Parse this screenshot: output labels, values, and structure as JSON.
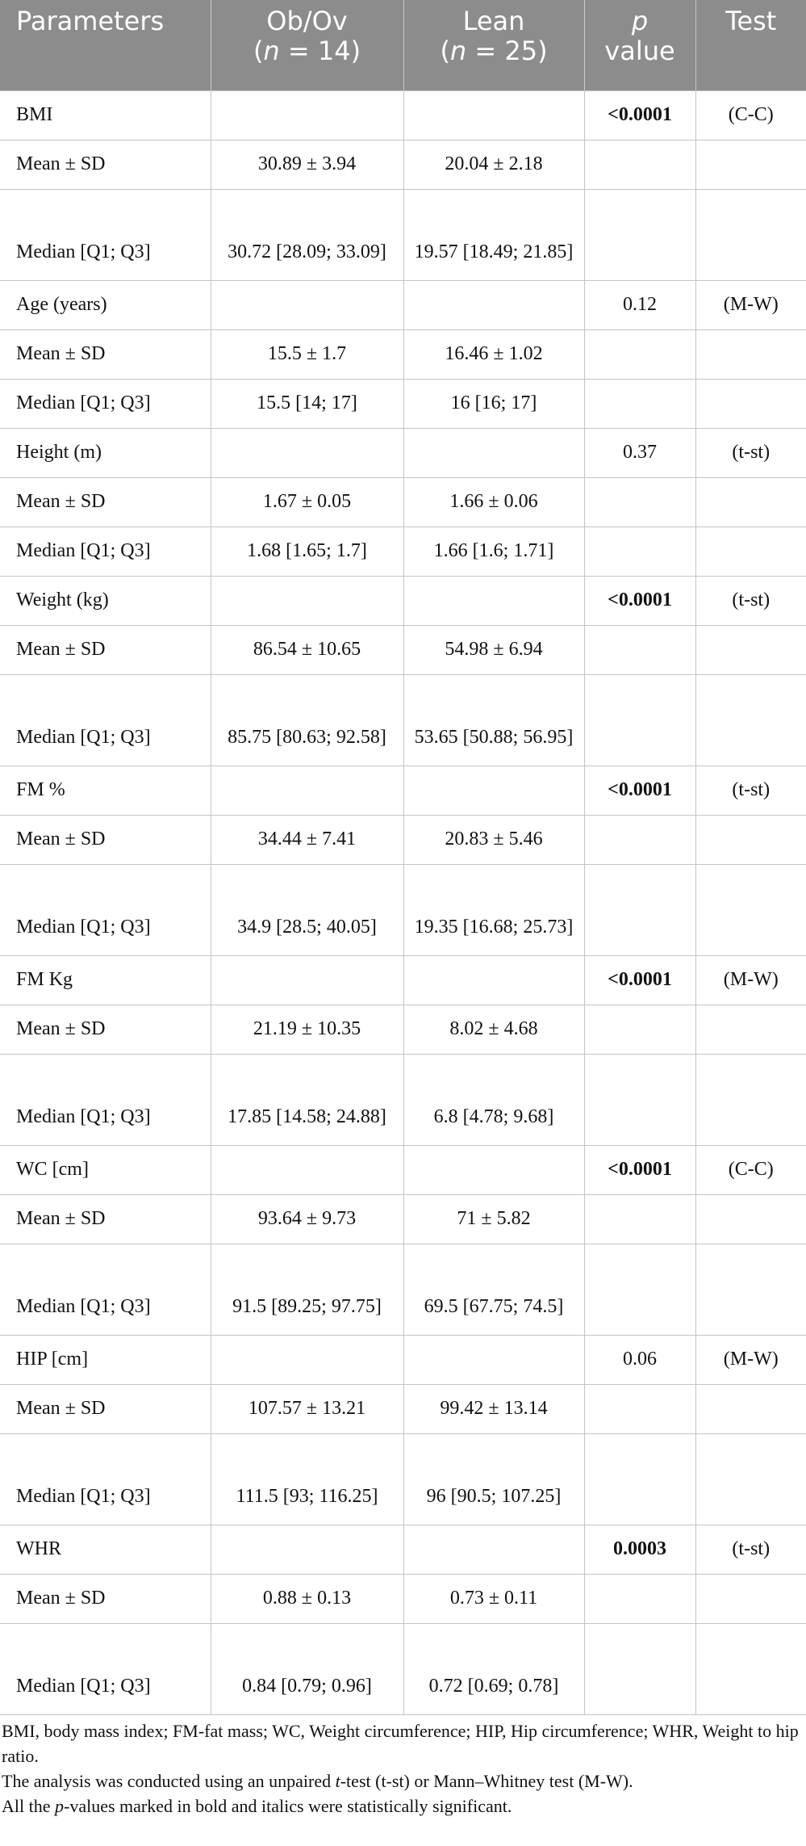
{
  "table": {
    "headers": {
      "parameters": "Parameters",
      "obov_line1": "Ob/Ov",
      "obov_n_pre": "(",
      "obov_n_var": "n",
      "obov_n_post": " = 14)",
      "lean_line1": "Lean",
      "lean_n_pre": "(",
      "lean_n_var": "n",
      "lean_n_post": " = 25)",
      "p_line1": "p",
      "p_line2": "value",
      "test": "Test"
    },
    "rows": [
      {
        "label": "BMI",
        "obov": "",
        "lean": "",
        "p": "<0.0001",
        "test": "(C-C)"
      },
      {
        "label": "Mean ± SD",
        "obov": "30.89 ± 3.94",
        "lean": "20.04 ± 2.18",
        "p": "",
        "test": ""
      },
      {
        "label": "Median [Q1; Q3]",
        "obov": "30.72 [28.09; 33.09]",
        "lean": "19.57 [18.49; 21.85]",
        "p": "",
        "test": ""
      },
      {
        "label": "Age (years)",
        "obov": "",
        "lean": "",
        "p": "0.12",
        "test": "(M-W)"
      },
      {
        "label": "Mean ± SD",
        "obov": "15.5 ± 1.7",
        "lean": "16.46 ± 1.02",
        "p": "",
        "test": ""
      },
      {
        "label": "Median [Q1; Q3]",
        "obov": "15.5 [14; 17]",
        "lean": "16 [16; 17]",
        "p": "",
        "test": ""
      },
      {
        "label": "Height (m)",
        "obov": "",
        "lean": "",
        "p": "0.37",
        "test": "(t-st)"
      },
      {
        "label": "Mean ± SD",
        "obov": "1.67 ± 0.05",
        "lean": "1.66 ± 0.06",
        "p": "",
        "test": ""
      },
      {
        "label": "Median [Q1; Q3]",
        "obov": "1.68 [1.65; 1.7]",
        "lean": "1.66 [1.6; 1.71]",
        "p": "",
        "test": ""
      },
      {
        "label": "Weight (kg)",
        "obov": "",
        "lean": "",
        "p": "<0.0001",
        "test": "(t-st)"
      },
      {
        "label": "Mean ± SD",
        "obov": "86.54 ± 10.65",
        "lean": "54.98 ± 6.94",
        "p": "",
        "test": ""
      },
      {
        "label": "Median [Q1; Q3]",
        "obov": "85.75 [80.63; 92.58]",
        "lean": "53.65 [50.88; 56.95]",
        "p": "",
        "test": ""
      },
      {
        "label": "FM %",
        "obov": "",
        "lean": "",
        "p": "<0.0001",
        "test": "(t-st)"
      },
      {
        "label": "Mean ± SD",
        "obov": "34.44 ± 7.41",
        "lean": "20.83 ± 5.46",
        "p": "",
        "test": ""
      },
      {
        "label": "Median [Q1; Q3]",
        "obov": "34.9 [28.5; 40.05]",
        "lean": "19.35 [16.68; 25.73]",
        "p": "",
        "test": ""
      },
      {
        "label": "FM Kg",
        "obov": "",
        "lean": "",
        "p": "<0.0001",
        "test": "(M-W)"
      },
      {
        "label": "Mean ± SD",
        "obov": "21.19 ± 10.35",
        "lean": "8.02 ± 4.68",
        "p": "",
        "test": ""
      },
      {
        "label": "Median [Q1; Q3]",
        "obov": "17.85 [14.58; 24.88]",
        "lean": "6.8 [4.78; 9.68]",
        "p": "",
        "test": ""
      },
      {
        "label": "WC [cm]",
        "obov": "",
        "lean": "",
        "p": "<0.0001",
        "test": "(C-C)"
      },
      {
        "label": "Mean ± SD",
        "obov": "93.64 ± 9.73",
        "lean": "71 ± 5.82",
        "p": "",
        "test": ""
      },
      {
        "label": "Median [Q1; Q3]",
        "obov": "91.5 [89.25; 97.75]",
        "lean": "69.5 [67.75; 74.5]",
        "p": "",
        "test": ""
      },
      {
        "label": "HIP [cm]",
        "obov": "",
        "lean": "",
        "p": "0.06",
        "test": "(M-W)"
      },
      {
        "label": "Mean ± SD",
        "obov": "107.57 ± 13.21",
        "lean": "99.42 ± 13.14",
        "p": "",
        "test": ""
      },
      {
        "label": "Median [Q1; Q3]",
        "obov": "111.5 [93; 116.25]",
        "lean": "96 [90.5; 107.25]",
        "p": "",
        "test": ""
      },
      {
        "label": "WHR",
        "obov": "",
        "lean": "",
        "p": "0.0003",
        "test": "(t-st)"
      },
      {
        "label": "Mean ± SD",
        "obov": "0.88 ± 0.13",
        "lean": "0.73 ± 0.11",
        "p": "",
        "test": ""
      },
      {
        "label": "Median [Q1; Q3]",
        "obov": "0.84 [0.79; 0.96]",
        "lean": "0.72 [0.69; 0.78]",
        "p": "",
        "test": ""
      }
    ]
  },
  "footnotes": {
    "line1": "BMI, body mass index; FM-fat mass; WC, Weight circumference; HIP, Hip circumference; WHR, Weight to hip ratio.",
    "line2_pre": "The analysis was conducted using an unpaired ",
    "line2_t": "t",
    "line2_post": "-test (t-st) or Mann–Whitney test (M-W).",
    "line3_pre": "All the ",
    "line3_p": "p",
    "line3_post": "-values marked in bold and italics were statistically significant."
  },
  "colors": {
    "header_bg": "#8c8c8c",
    "header_text": "#ffffff",
    "grid": "#c4c4c4"
  }
}
